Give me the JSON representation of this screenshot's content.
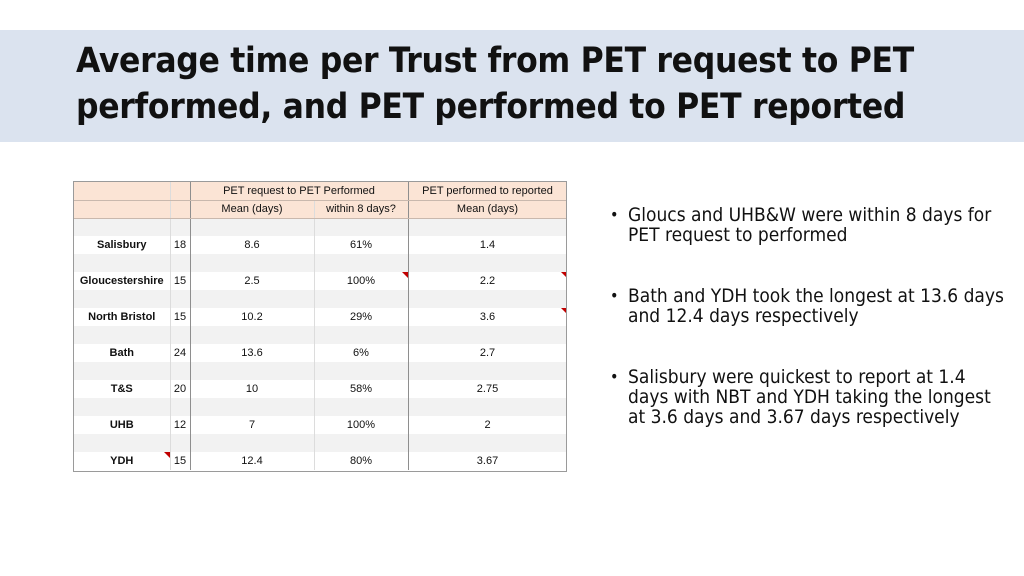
{
  "title": {
    "line1": "Average time per Trust from PET request to PET",
    "line2": "performed, and PET performed to PET reported"
  },
  "table": {
    "group_headers": {
      "request_to_performed": "PET request to PET Performed",
      "performed_to_reported": "PET performed to reported"
    },
    "sub_headers": {
      "mean1": "Mean (days)",
      "within8": "within 8 days?",
      "mean2": "Mean (days)"
    },
    "rows": [
      {
        "trust": "Salisbury",
        "n": "18",
        "mean_req": "8.6",
        "within8": "61%",
        "mean_rep": "1.4"
      },
      {
        "trust": "Gloucestershire",
        "n": "15",
        "mean_req": "2.5",
        "within8": "100%",
        "mean_rep": "2.2"
      },
      {
        "trust": "North Bristol",
        "n": "15",
        "mean_req": "10.2",
        "within8": "29%",
        "mean_rep": "3.6"
      },
      {
        "trust": "Bath",
        "n": "24",
        "mean_req": "13.6",
        "within8": "6%",
        "mean_rep": "2.7"
      },
      {
        "trust": "T&S",
        "n": "20",
        "mean_req": "10",
        "within8": "58%",
        "mean_rep": "2.75"
      },
      {
        "trust": "UHB",
        "n": "12",
        "mean_req": "7",
        "within8": "100%",
        "mean_rep": "2"
      },
      {
        "trust": "YDH",
        "n": "15",
        "mean_req": "12.4",
        "within8": "80%",
        "mean_rep": "3.67"
      }
    ]
  },
  "bullets": [
    "Gloucs and UHB&W were within 8 days for PET request to performed",
    "Bath and YDH took the longest at 13.6 days and 12.4 days respectively",
    "Salisbury were quickest to report at 1.4 days with NBT and YDH taking the longest at 3.6 days and 3.67 days respectively"
  ],
  "colors": {
    "title_band": "#dbe3ef",
    "header_fill": "#fbe4d5",
    "comment_marker": "#c00000"
  }
}
